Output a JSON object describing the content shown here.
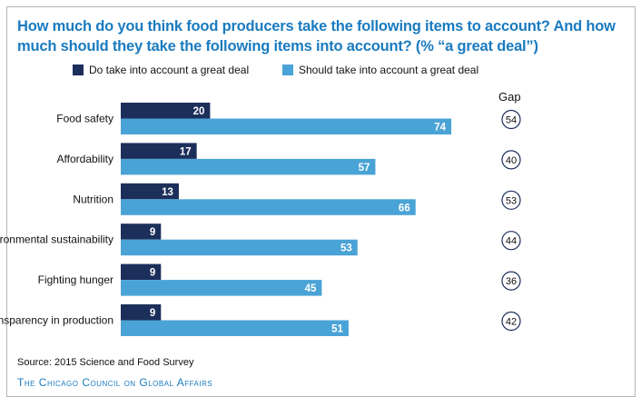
{
  "chart_data": {
    "type": "bar",
    "orientation": "horizontal",
    "title": "How much do you think food producers take the following items to account? And how much should they take the following items into account? (% “a great deal”)",
    "categories": [
      "Food safety",
      "Affordability",
      "Nutrition",
      "Environmental sustainability",
      "Fighting hunger",
      "Transparency in production"
    ],
    "series": [
      {
        "name": "Do take into account a great deal",
        "color": "#1c2e5a",
        "values": [
          20,
          17,
          13,
          9,
          9,
          9
        ]
      },
      {
        "name": "Should take into account a great deal",
        "color": "#4aa3d6",
        "values": [
          74,
          57,
          66,
          53,
          45,
          51
        ]
      }
    ],
    "gap_label": "Gap",
    "gap": [
      54,
      40,
      53,
      44,
      36,
      42
    ],
    "legend": "top",
    "grid": false,
    "xlim": [
      0,
      100
    ]
  },
  "source": "Source: 2015 Science and Food Survey",
  "organization": "The Chicago Council on Global Affairs"
}
